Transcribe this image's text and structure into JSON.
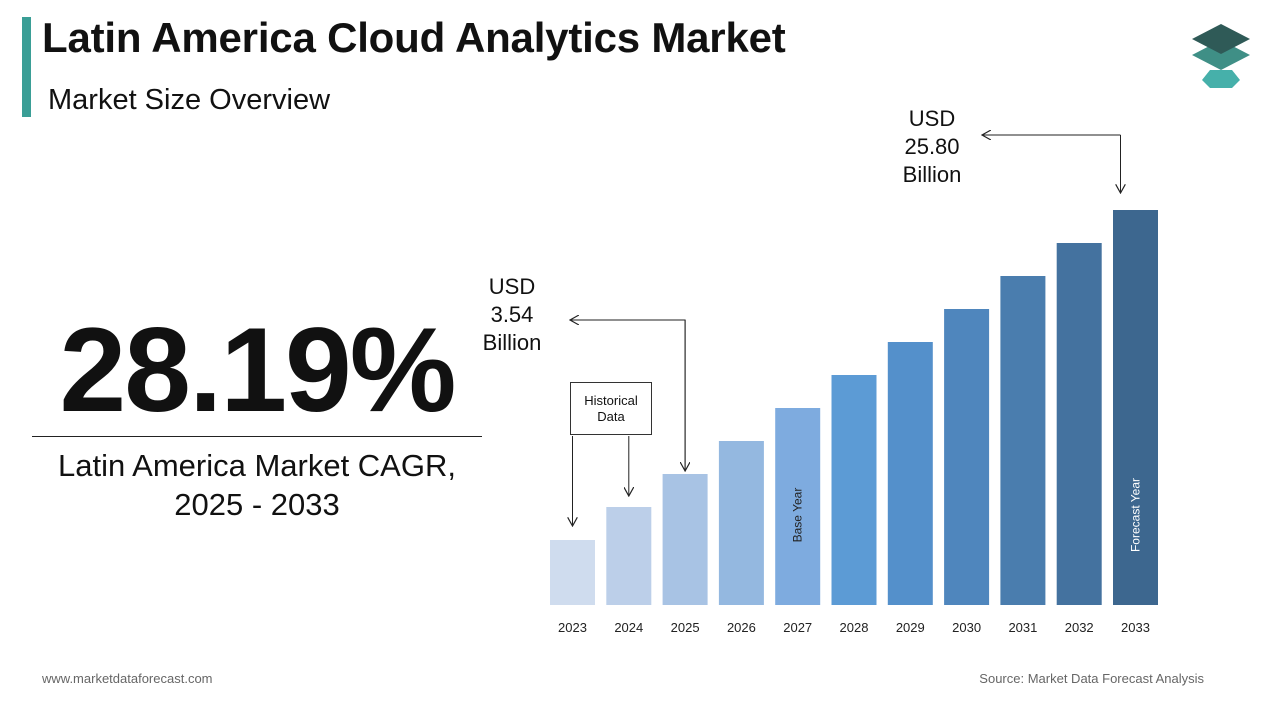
{
  "header": {
    "title": "Latin America Cloud Analytics Market",
    "subtitle": "Market Size Overview"
  },
  "kpi": {
    "cagr_value": "28.19%",
    "cagr_label_line1": "Latin America Market CAGR,",
    "cagr_label_line2": "2025 - 2033"
  },
  "callouts": {
    "start": {
      "line1": "USD",
      "line2": "3.54",
      "line3": "Billion"
    },
    "end": {
      "line1": "USD",
      "line2": "25.80",
      "line3": "Billion"
    }
  },
  "historical_box": {
    "line1": "Historical",
    "line2": "Data"
  },
  "colors": {
    "accent": "#3a9e96"
  },
  "chart_data": {
    "type": "bar",
    "categories": [
      "2023",
      "2024",
      "2025",
      "2026",
      "2027",
      "2028",
      "2029",
      "2030",
      "2031",
      "2032",
      "2033"
    ],
    "values": [
      1.6,
      2.4,
      3.54,
      4.2,
      5.0,
      5.8,
      6.6,
      7.4,
      8.2,
      9.0,
      25.8
    ],
    "bar_colors": [
      "#cfdcee",
      "#bccfe9",
      "#a8c3e4",
      "#94b8e0",
      "#7eabdf",
      "#5c9bd5",
      "#5490cb",
      "#4f86bd",
      "#4a7dae",
      "#44729f",
      "#3d678f"
    ],
    "bar_labels": {
      "2027": "Base Year",
      "2033": "Forecast Year"
    },
    "axis_broken": true
  },
  "footer": {
    "website": "www.marketdataforecast.com",
    "source": "Source: Market Data Forecast Analysis"
  }
}
